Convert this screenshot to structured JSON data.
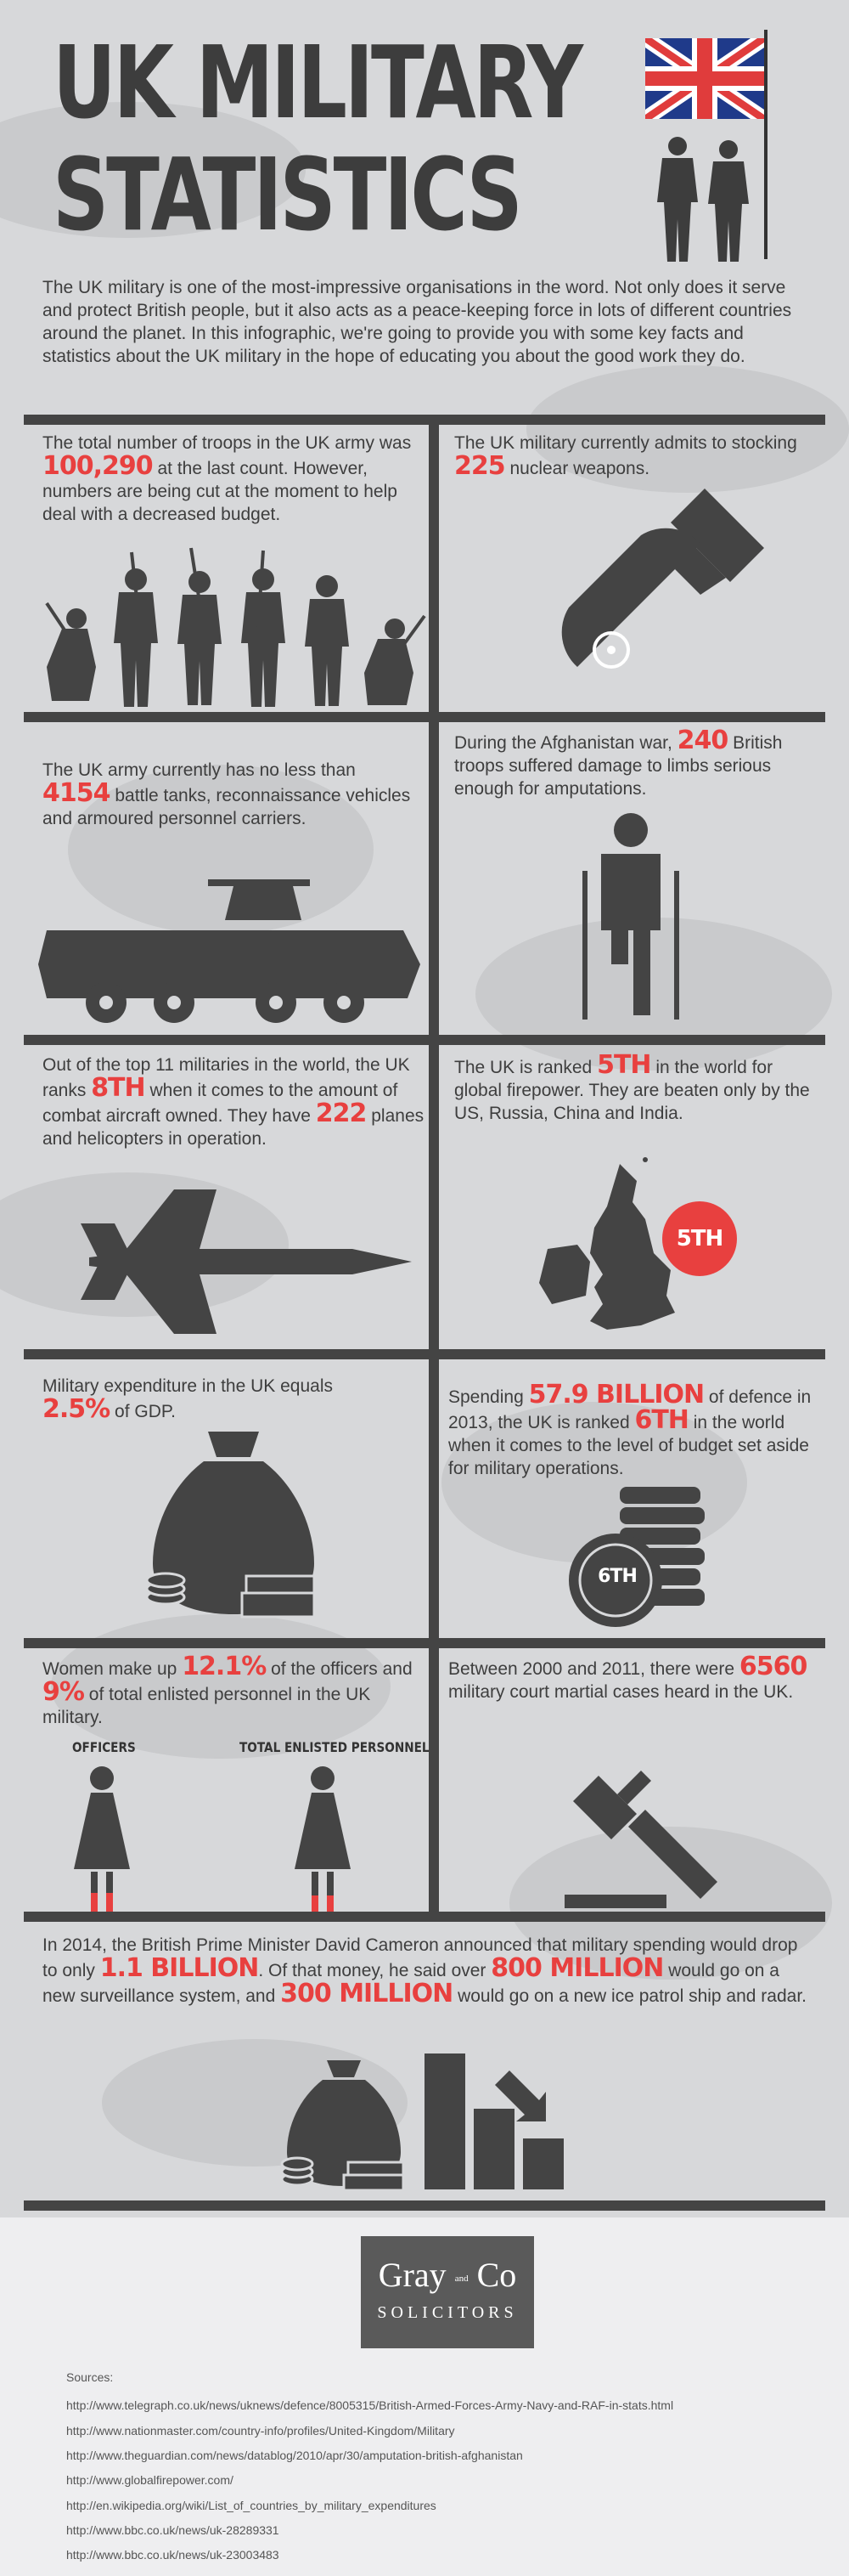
{
  "title": {
    "line1": "UK MILITARY",
    "line2": "STATISTICS"
  },
  "intro": "The UK military is one of the most-impressive organisations in the word. Not only does it serve and protect British people, but it also acts as a peace-keeping force in lots of different countries around the planet. In this infographic, we're going to provide you with some key facts and statistics about the UK military in the hope of educating you about the good work they do.",
  "stats": {
    "troops": {
      "a": "The total number of troops in the UK army was ",
      "hl": "100,290",
      "b": " at the last count. However, numbers are being cut at the moment to help deal with a decreased budget."
    },
    "nuclear": {
      "a": "The UK military currently admits to stocking ",
      "hl": "225",
      "b": " nuclear weapons."
    },
    "tanks": {
      "a": "The UK army currently has no less than ",
      "hl": "4154",
      "b": " battle tanks, reconnaissance vehicles and armoured personnel carriers."
    },
    "amputations": {
      "a": "During the Afghanistan war, ",
      "hl": "240",
      "b": " British troops suffered damage to limbs serious enough for amputations."
    },
    "aircraft": {
      "a": "Out of the top 11 militaries in the world, the UK ranks ",
      "hl": "8TH",
      "b": " when it comes to the amount of combat aircraft owned. They have ",
      "hl2": "222",
      "c": " planes and helicopters in operation."
    },
    "firepower": {
      "a": "The UK is ranked ",
      "hl": "5TH",
      "b": " in the world for global firepower. They are beaten only by the US, Russia, China and India.",
      "badge": "5TH"
    },
    "expenditure": {
      "a": "Military expenditure in the UK equals ",
      "hl": "2.5%",
      "b": " of GDP."
    },
    "budget": {
      "a": "Spending ",
      "hl": "57.9 BILLION",
      "b": " of defence in 2013, the UK is ranked ",
      "hl2": "6TH",
      "c": " in the world when it comes to the level of budget set aside for military operations.",
      "coin": "6TH"
    },
    "women": {
      "a": "Women make up ",
      "hl": "12.1%",
      "b": " of the officers and ",
      "hl2": "9%",
      "c": " of total enlisted personnel in the UK military.",
      "label1": "OFFICERS",
      "label2": "TOTAL ENLISTED PERSONNEL"
    },
    "court": {
      "a": "Between 2000 and 2011, there were ",
      "hl": "6560",
      "b": " military court martial cases heard in the UK."
    },
    "spending": {
      "a": "In 2014, the British Prime Minister David Cameron announced that military spending would drop to only ",
      "hl": "1.1 BILLION",
      "b": ". Of that money, he said over ",
      "hl2": "800 MILLION",
      "c": " would go on a new surveillance system, and ",
      "hl3": "300 MILLION",
      "d": " would go on a new ice patrol ship and radar."
    }
  },
  "logo": {
    "name_a": "Gray",
    "name_and": "and",
    "name_b": "Co",
    "sub": "SOLICITORS"
  },
  "sources": {
    "heading": "Sources:",
    "items": [
      "http://www.telegraph.co.uk/news/uknews/defence/8005315/British-Armed-Forces-Army-Navy-and-RAF-in-stats.html",
      "http://www.nationmaster.com/country-info/profiles/United-Kingdom/Military",
      "http://www.theguardian.com/news/datablog/2010/apr/30/amputation-british-afghanistan",
      "http://www.globalfirepower.com/",
      "http://en.wikipedia.org/wiki/List_of_countries_by_military_expenditures",
      "http://www.bbc.co.uk/news/uk-28289331",
      "http://www.bbc.co.uk/news/uk-23003483"
    ]
  },
  "colors": {
    "accent": "#e8403f",
    "dark": "#444444",
    "background": "#d7d8da"
  }
}
